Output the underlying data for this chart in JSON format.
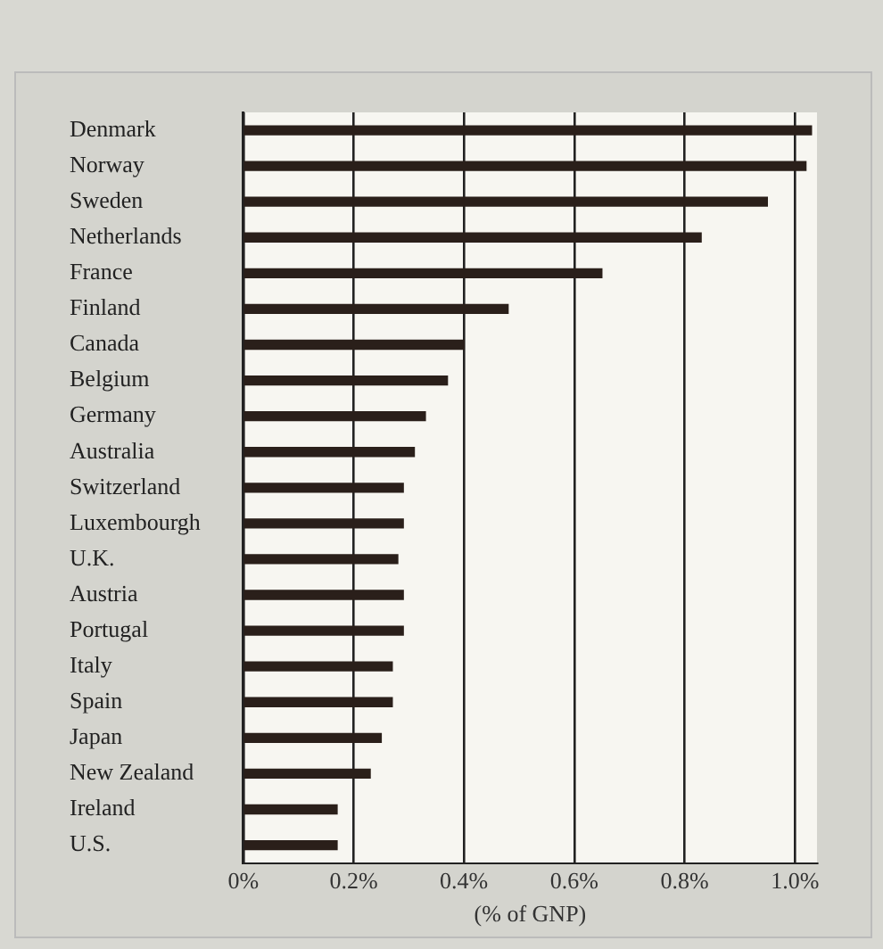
{
  "chart_data": {
    "type": "bar",
    "orientation": "horizontal",
    "xlabel": "(% of GNP)",
    "categories": [
      "Denmark",
      "Norway",
      "Sweden",
      "Netherlands",
      "France",
      "Finland",
      "Canada",
      "Belgium",
      "Germany",
      "Australia",
      "Switzerland",
      "Luxembourgh",
      "U.K.",
      "Austria",
      "Portugal",
      "Italy",
      "Spain",
      "Japan",
      "New Zealand",
      "Ireland",
      "U.S."
    ],
    "values": [
      1.03,
      1.02,
      0.95,
      0.83,
      0.65,
      0.48,
      0.4,
      0.37,
      0.33,
      0.31,
      0.29,
      0.29,
      0.28,
      0.29,
      0.29,
      0.27,
      0.27,
      0.25,
      0.23,
      0.17,
      0.17
    ],
    "color": "#2a1f1a",
    "xlim": [
      0,
      1.04
    ],
    "xticks": [
      {
        "value": 0,
        "label": "0%"
      },
      {
        "value": 0.2,
        "label": "0.2%"
      },
      {
        "value": 0.4,
        "label": "0.4%"
      },
      {
        "value": 0.6,
        "label": "0.6%"
      },
      {
        "value": 0.8,
        "label": "0.8%"
      },
      {
        "value": 1.0,
        "label": "1.0%"
      }
    ],
    "grid": "x"
  }
}
